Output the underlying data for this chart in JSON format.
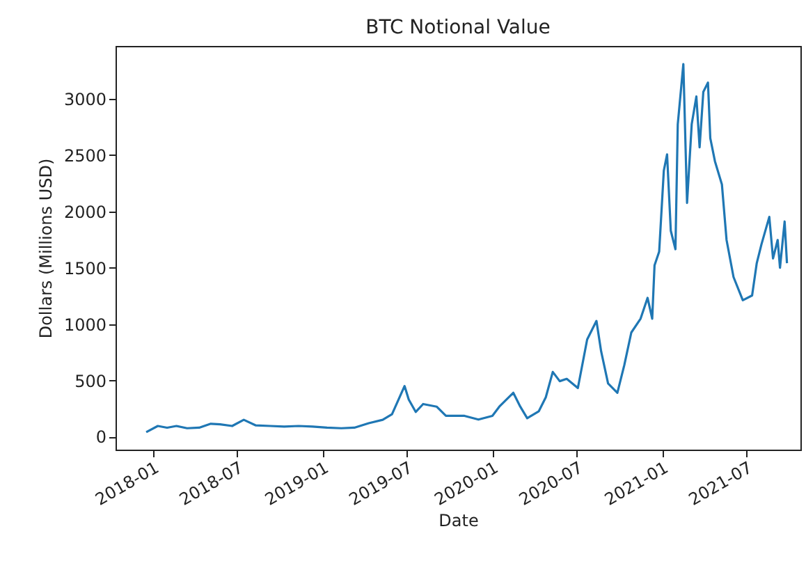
{
  "chart_data": {
    "type": "line",
    "title": "BTC Notional Value",
    "xlabel": "Date",
    "ylabel": "Dollars (Millions USD)",
    "x": [
      "2017-12-17",
      "2018-01-11",
      "2018-01-31",
      "2018-02-20",
      "2018-03-15",
      "2018-04-10",
      "2018-05-05",
      "2018-05-25",
      "2018-06-20",
      "2018-07-15",
      "2018-08-10",
      "2018-09-10",
      "2018-10-10",
      "2018-11-10",
      "2018-12-10",
      "2019-01-10",
      "2019-02-10",
      "2019-03-10",
      "2019-04-10",
      "2019-05-10",
      "2019-05-30",
      "2019-06-26",
      "2019-07-05",
      "2019-07-20",
      "2019-08-05",
      "2019-09-03",
      "2019-09-23",
      "2019-11-02",
      "2019-12-02",
      "2020-01-01",
      "2020-01-16",
      "2020-02-15",
      "2020-03-01",
      "2020-03-16",
      "2020-04-10",
      "2020-04-25",
      "2020-05-10",
      "2020-05-25",
      "2020-06-09",
      "2020-07-03",
      "2020-07-23",
      "2020-08-12",
      "2020-08-22",
      "2020-09-06",
      "2020-09-26",
      "2020-10-11",
      "2020-10-26",
      "2020-11-15",
      "2020-11-30",
      "2020-12-10",
      "2020-12-15",
      "2020-12-25",
      "2021-01-04",
      "2021-01-11",
      "2021-01-19",
      "2021-01-29",
      "2021-02-03",
      "2021-02-15",
      "2021-02-23",
      "2021-03-05",
      "2021-03-15",
      "2021-03-22",
      "2021-03-30",
      "2021-04-09",
      "2021-04-14",
      "2021-04-24",
      "2021-05-09",
      "2021-05-19",
      "2021-06-03",
      "2021-06-23",
      "2021-07-13",
      "2021-07-23",
      "2021-08-02",
      "2021-08-19",
      "2021-08-27",
      "2021-09-06",
      "2021-09-11",
      "2021-09-21",
      "2021-09-26"
    ],
    "series": [
      {
        "color": "#1f77b4",
        "values": [
          40,
          95,
          80,
          95,
          75,
          80,
          115,
          110,
          95,
          150,
          100,
          95,
          90,
          95,
          90,
          80,
          75,
          80,
          120,
          150,
          200,
          450,
          330,
          220,
          290,
          267,
          185,
          185,
          152,
          185,
          267,
          390,
          267,
          164,
          226,
          350,
          575,
          493,
          514,
          432,
          863,
          1028,
          760,
          473,
          390,
          637,
          925,
          1048,
          1233,
          1048,
          1521,
          1644,
          2363,
          2507,
          1829,
          1665,
          2774,
          3309,
          2076,
          2774,
          3021,
          2569,
          3062,
          3144,
          2651,
          2446,
          2240,
          1747,
          1418,
          1212,
          1254,
          1541,
          1706,
          1952,
          1582,
          1747,
          1500,
          1911,
          1541
        ]
      }
    ],
    "xlim": [
      "2017-10-12",
      "2021-10-25"
    ],
    "xticks": [
      {
        "value": "2018-01",
        "label": "2018-01"
      },
      {
        "value": "2018-07",
        "label": "2018-07"
      },
      {
        "value": "2019-01",
        "label": "2019-01"
      },
      {
        "value": "2019-07",
        "label": "2019-07"
      },
      {
        "value": "2020-01",
        "label": "2020-01"
      },
      {
        "value": "2020-07",
        "label": "2020-07"
      },
      {
        "value": "2021-01",
        "label": "2021-01"
      },
      {
        "value": "2021-07",
        "label": "2021-07"
      }
    ],
    "ylim": [
      -115,
      3470
    ],
    "yticks": [
      0,
      500,
      1000,
      1500,
      2000,
      2500,
      3000
    ],
    "grid": false
  }
}
